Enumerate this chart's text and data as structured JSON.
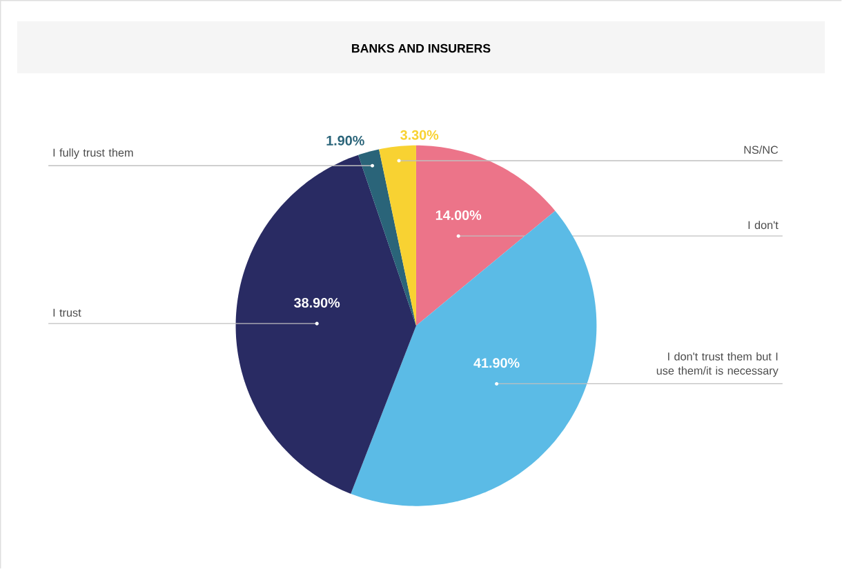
{
  "chart_data": {
    "type": "pie",
    "title": "BANKS AND INSURERS",
    "categories": [
      "I don't",
      "I don't trust them but I use them/it is necessary",
      "I trust",
      "I fully trust them",
      "NS/NC"
    ],
    "values": [
      14.0,
      41.9,
      38.9,
      1.9,
      3.3
    ],
    "colors": [
      "#ec7489",
      "#5bbbe6",
      "#292b63",
      "#2a6479",
      "#f8d232"
    ],
    "value_labels": [
      "14.00%",
      "41.90%",
      "38.90%",
      "1.90%",
      "3.30%"
    ]
  }
}
